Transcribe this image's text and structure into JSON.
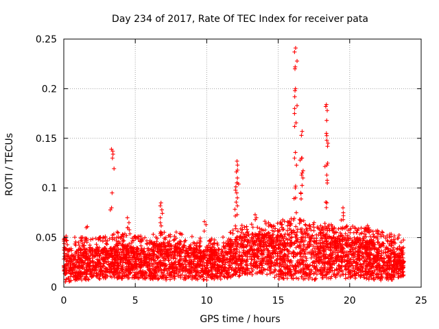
{
  "chart_data": {
    "type": "scatter",
    "title": "Day 234 of 2017, Rate Of TEC Index for receiver pata",
    "xlabel": "GPS time / hours",
    "ylabel": "ROTI / TECUs",
    "xlim": [
      0,
      25
    ],
    "ylim": [
      0,
      0.25
    ],
    "xticks": [
      0,
      5,
      10,
      15,
      20,
      25
    ],
    "yticks": [
      0,
      0.05,
      0.1,
      0.15,
      0.2,
      0.25
    ],
    "ytick_labels": [
      "0",
      "0.05",
      "0.1",
      "0.15",
      "0.2",
      "0.25"
    ],
    "grid": true,
    "marker": "+",
    "color": "#ff0000",
    "series": [
      {
        "name": "ROTI",
        "description": "dense band of ROTI samples over 0–23.8 h",
        "x_range": [
          0,
          23.8
        ],
        "baseline_envelope": {
          "x": [
            0,
            1,
            2,
            3,
            4,
            5,
            6,
            7,
            8,
            9,
            10,
            11,
            12,
            13,
            14,
            15,
            16,
            17,
            18,
            19,
            20,
            21,
            22,
            23,
            23.8
          ],
          "low": [
            0.005,
            0.006,
            0.008,
            0.008,
            0.008,
            0.009,
            0.008,
            0.007,
            0.008,
            0.007,
            0.007,
            0.008,
            0.01,
            0.012,
            0.014,
            0.008,
            0.008,
            0.007,
            0.008,
            0.008,
            0.008,
            0.008,
            0.007,
            0.007,
            0.007
          ],
          "high": [
            0.04,
            0.038,
            0.04,
            0.04,
            0.045,
            0.04,
            0.04,
            0.045,
            0.045,
            0.04,
            0.038,
            0.04,
            0.05,
            0.055,
            0.055,
            0.055,
            0.058,
            0.055,
            0.055,
            0.05,
            0.05,
            0.048,
            0.045,
            0.043,
            0.04
          ]
        },
        "spikes": [
          {
            "x": 1.6,
            "values": [
              0.06,
              0.061
            ]
          },
          {
            "x": 3.4,
            "values": [
              0.08,
              0.095,
              0.13,
              0.134,
              0.137,
              0.139
            ]
          },
          {
            "x": 4.5,
            "values": [
              0.06,
              0.065,
              0.07
            ]
          },
          {
            "x": 6.8,
            "values": [
              0.065,
              0.07,
              0.078,
              0.082,
              0.085
            ]
          },
          {
            "x": 9.9,
            "values": [
              0.063,
              0.066
            ]
          },
          {
            "x": 12.1,
            "values": [
              0.073,
              0.082,
              0.09,
              0.095,
              0.105,
              0.11,
              0.118,
              0.123,
              0.127
            ]
          },
          {
            "x": 13.4,
            "values": [
              0.068,
              0.07,
              0.073
            ]
          },
          {
            "x": 16.2,
            "values": [
              0.09,
              0.1,
              0.13,
              0.162,
              0.175,
              0.18,
              0.198,
              0.2,
              0.22,
              0.222,
              0.237,
              0.241
            ]
          },
          {
            "x": 16.6,
            "values": [
              0.095,
              0.113,
              0.115,
              0.128,
              0.13,
              0.153,
              0.157
            ]
          },
          {
            "x": 18.4,
            "values": [
              0.085,
              0.105,
              0.113,
              0.123,
              0.125,
              0.142,
              0.148,
              0.155,
              0.168,
              0.178,
              0.182,
              0.184
            ]
          },
          {
            "x": 19.5,
            "values": [
              0.06,
              0.068,
              0.072,
              0.075,
              0.08
            ]
          },
          {
            "x": 21.3,
            "values": [
              0.055,
              0.06,
              0.062
            ]
          },
          {
            "x": 23.0,
            "values": [
              0.042,
              0.046,
              0.048
            ]
          }
        ]
      }
    ]
  }
}
